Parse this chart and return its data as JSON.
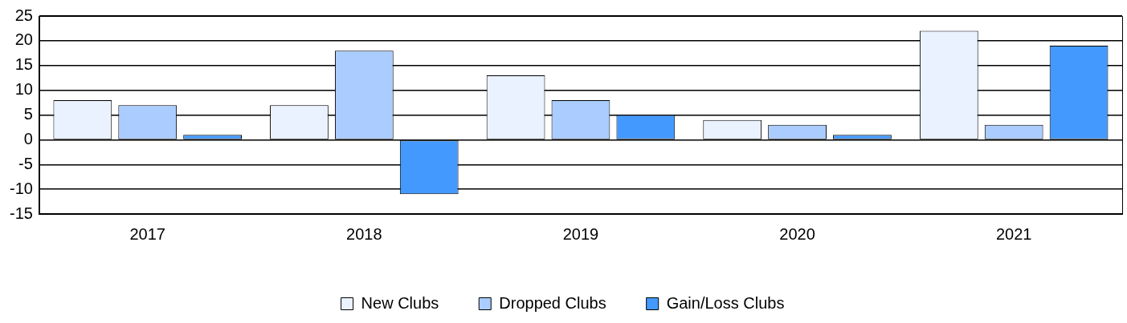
{
  "chart_data": {
    "type": "bar",
    "categories": [
      "2017",
      "2018",
      "2019",
      "2020",
      "2021"
    ],
    "series": [
      {
        "name": "New Clubs",
        "color": "#eaf2ff",
        "values": [
          8,
          7,
          13,
          4,
          22
        ]
      },
      {
        "name": "Dropped Clubs",
        "color": "#aaccff",
        "values": [
          7,
          18,
          8,
          3,
          3
        ]
      },
      {
        "name": "Gain/Loss Clubs",
        "color": "#4499ff",
        "values": [
          1,
          -11,
          5,
          1,
          19
        ]
      }
    ],
    "ylim": [
      -15,
      25
    ],
    "yticks": [
      -15,
      -10,
      -5,
      0,
      5,
      10,
      15,
      20,
      25
    ],
    "grid": "y",
    "legend": "bottom"
  }
}
